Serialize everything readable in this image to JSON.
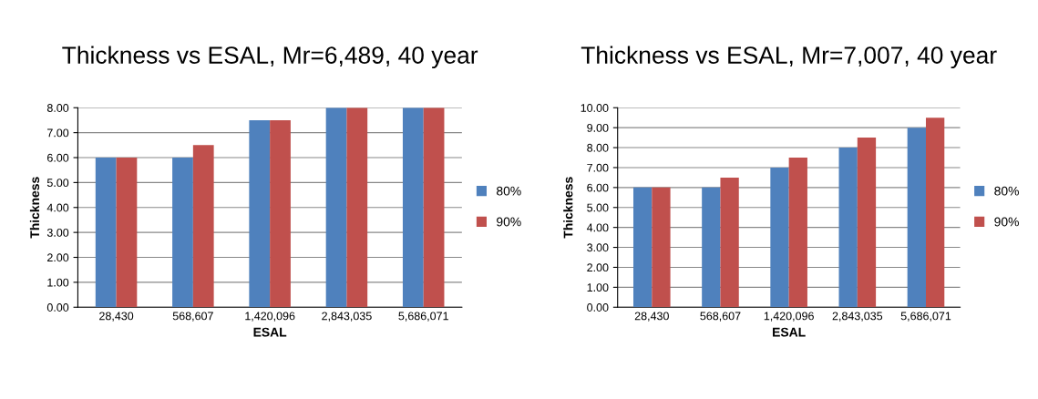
{
  "chart_data": [
    {
      "type": "bar",
      "title": "Thickness vs ESAL, Mr=6,489, 40 year",
      "xlabel": "ESAL",
      "ylabel": "Thickness",
      "categories": [
        "28,430",
        "568,607",
        "1,420,096",
        "2,843,035",
        "5,686,071"
      ],
      "series": [
        {
          "name": "80%",
          "color": "#4f81bd",
          "values": [
            6,
            6,
            7.5,
            8,
            8
          ]
        },
        {
          "name": "90%",
          "color": "#c0504d",
          "values": [
            6,
            6.5,
            7.5,
            8,
            8
          ]
        }
      ],
      "ylim": [
        0,
        8
      ],
      "yticks": [
        {
          "value": 0,
          "label": "0.00"
        },
        {
          "value": 1,
          "label": "1.00"
        },
        {
          "value": 2,
          "label": "2.00"
        },
        {
          "value": 3,
          "label": "3.00"
        },
        {
          "value": 4,
          "label": "4.00"
        },
        {
          "value": 5,
          "label": "5.00"
        },
        {
          "value": 6,
          "label": "6.00"
        },
        {
          "value": 7,
          "label": "7.00"
        },
        {
          "value": 8,
          "label": "8.00"
        }
      ],
      "grid": "y",
      "legend": "right"
    },
    {
      "type": "bar",
      "title": "Thickness vs ESAL, Mr=7,007, 40 year",
      "xlabel": "ESAL",
      "ylabel": "Thickness",
      "categories": [
        "28,430",
        "568,607",
        "1,420,096",
        "2,843,035",
        "5,686,071"
      ],
      "series": [
        {
          "name": "80%",
          "color": "#4f81bd",
          "values": [
            6,
            6,
            7,
            8,
            9
          ]
        },
        {
          "name": "90%",
          "color": "#c0504d",
          "values": [
            6,
            6.5,
            7.5,
            8.5,
            9.5
          ]
        }
      ],
      "ylim": [
        0,
        10
      ],
      "yticks": [
        {
          "value": 0,
          "label": "0.00"
        },
        {
          "value": 1,
          "label": "1.00"
        },
        {
          "value": 2,
          "label": "2.00"
        },
        {
          "value": 3,
          "label": "3.00"
        },
        {
          "value": 4,
          "label": "4.00"
        },
        {
          "value": 5,
          "label": "5.00"
        },
        {
          "value": 6,
          "label": "6.00"
        },
        {
          "value": 7,
          "label": "7.00"
        },
        {
          "value": 8,
          "label": "8.00"
        },
        {
          "value": 9,
          "label": "9.00"
        },
        {
          "value": 10,
          "label": "10.00"
        }
      ],
      "grid": "y",
      "legend": "right"
    }
  ]
}
